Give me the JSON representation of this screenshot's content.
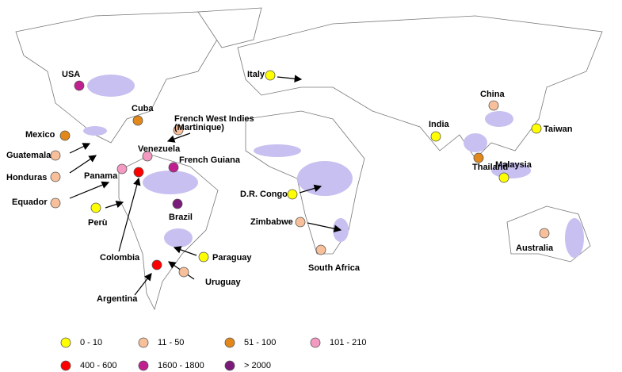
{
  "markers": [
    {
      "label": "USA",
      "color": "#c0208f"
    },
    {
      "label": "Cuba",
      "color": "#e2881a"
    },
    {
      "label": "Mexico",
      "color": "#e2881a"
    },
    {
      "label": [
        "French West Indies",
        "(Martinique)"
      ],
      "color": "#f8c09a"
    },
    {
      "label": "Guatemala",
      "color": "#f8c09a"
    },
    {
      "label": "Honduras",
      "color": "#f8c09a"
    },
    {
      "label": "Equador",
      "color": "#f8c09a"
    },
    {
      "label": "Panama",
      "color": "#f49ac2"
    },
    {
      "label": "Venezuela",
      "color": "#f49ac2"
    },
    {
      "label": "French Guiana",
      "color": "#c0208f"
    },
    {
      "label": "Colombia",
      "color": "#ff0000"
    },
    {
      "label": "Perù",
      "color": "#ffff00"
    },
    {
      "label": "Brazil",
      "color": "#7a1a7a"
    },
    {
      "label": "Paraguay",
      "color": "#ffff00"
    },
    {
      "label": "Uruguay",
      "color": "#f8c09a"
    },
    {
      "label": "Argentina",
      "color": "#ff0000"
    },
    {
      "label": "Italy",
      "color": "#ffff00"
    },
    {
      "label": "China",
      "color": "#f8c09a"
    },
    {
      "label": "India",
      "color": "#ffff00"
    },
    {
      "label": "Taiwan",
      "color": "#ffff00"
    },
    {
      "label": "Thailand",
      "color": "#e2881a"
    },
    {
      "label": "Malaysia",
      "color": "#ffff00"
    },
    {
      "label": "D.R. Congo",
      "color": "#ffff00"
    },
    {
      "label": "Zimbabwe",
      "color": "#f8c09a"
    },
    {
      "label": "South Africa",
      "color": "#f8c09a"
    },
    {
      "label": "Australia",
      "color": "#f8c09a"
    }
  ],
  "legend": [
    {
      "label": "0 - 10",
      "color": "#ffff00"
    },
    {
      "label": "11 - 50",
      "color": "#f8c09a"
    },
    {
      "label": "51 - 100",
      "color": "#e2881a"
    },
    {
      "label": "101 - 210",
      "color": "#f49ac2"
    },
    {
      "label": "400 - 600",
      "color": "#ff0000"
    },
    {
      "label": "1600 - 1800",
      "color": "#c0208f"
    },
    {
      "label": "> 2000",
      "color": "#7a1a7a"
    }
  ]
}
